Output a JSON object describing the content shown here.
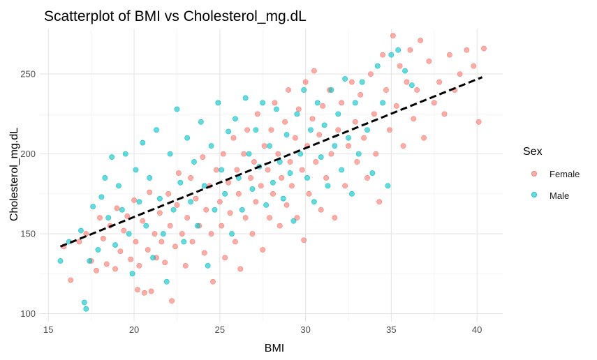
{
  "chart_data": {
    "type": "scatter",
    "title": "Scatterplot of BMI vs Cholesterol_mg.dL",
    "xlabel": "BMI",
    "ylabel": "Cholesterol_mg.dL",
    "xlim": [
      14.5,
      41.5
    ],
    "ylim": [
      95,
      278
    ],
    "x_ticks": [
      15,
      20,
      25,
      30,
      35,
      40
    ],
    "y_ticks": [
      100,
      150,
      200,
      250
    ],
    "grid": true,
    "legend": {
      "title": "Sex",
      "placement": "right",
      "entries": [
        "Female",
        "Male"
      ]
    },
    "series": [
      {
        "name": "Female",
        "color": "#F8766D",
        "points": [
          [
            15.9,
            142
          ],
          [
            16.3,
            121
          ],
          [
            16.8,
            145
          ],
          [
            17.2,
            150
          ],
          [
            17.5,
            133
          ],
          [
            17.8,
            127
          ],
          [
            18.0,
            160
          ],
          [
            18.2,
            147
          ],
          [
            18.4,
            131
          ],
          [
            18.6,
            155
          ],
          [
            18.9,
            128
          ],
          [
            19.0,
            166
          ],
          [
            19.2,
            139
          ],
          [
            19.4,
            152
          ],
          [
            19.6,
            161
          ],
          [
            19.8,
            134
          ],
          [
            20.0,
            171
          ],
          [
            20.1,
            145
          ],
          [
            20.2,
            115
          ],
          [
            20.3,
            130
          ],
          [
            20.5,
            158
          ],
          [
            20.6,
            113
          ],
          [
            20.8,
            140
          ],
          [
            20.9,
            176
          ],
          [
            21.0,
            114
          ],
          [
            21.2,
            150
          ],
          [
            21.3,
            135
          ],
          [
            21.5,
            163
          ],
          [
            21.6,
            145
          ],
          [
            21.8,
            132
          ],
          [
            22.0,
            175
          ],
          [
            22.1,
            155
          ],
          [
            22.2,
            108
          ],
          [
            22.4,
            142
          ],
          [
            22.5,
            168
          ],
          [
            22.6,
            188
          ],
          [
            22.8,
            150
          ],
          [
            23.0,
            130
          ],
          [
            23.1,
            160
          ],
          [
            23.3,
            185
          ],
          [
            23.4,
            145
          ],
          [
            23.6,
            172
          ],
          [
            23.8,
            155
          ],
          [
            24.0,
            198
          ],
          [
            24.1,
            138
          ],
          [
            24.2,
            165
          ],
          [
            24.4,
            180
          ],
          [
            24.5,
            150
          ],
          [
            24.6,
            120
          ],
          [
            24.8,
            190
          ],
          [
            25.0,
            170
          ],
          [
            25.1,
            155
          ],
          [
            25.2,
            200
          ],
          [
            25.3,
            135
          ],
          [
            25.5,
            182
          ],
          [
            25.6,
            163
          ],
          [
            25.8,
            210
          ],
          [
            25.9,
            145
          ],
          [
            26.0,
            190
          ],
          [
            26.1,
            175
          ],
          [
            26.2,
            128
          ],
          [
            26.4,
            200
          ],
          [
            26.5,
            160
          ],
          [
            26.6,
            215
          ],
          [
            26.8,
            185
          ],
          [
            26.9,
            150
          ],
          [
            27.0,
            195
          ],
          [
            27.1,
            170
          ],
          [
            27.2,
            225
          ],
          [
            27.4,
            180
          ],
          [
            27.5,
            140
          ],
          [
            27.6,
            205
          ],
          [
            27.8,
            190
          ],
          [
            27.9,
            160
          ],
          [
            28.0,
            215
          ],
          [
            28.1,
            175
          ],
          [
            28.2,
            232
          ],
          [
            28.4,
            200
          ],
          [
            28.5,
            155
          ],
          [
            28.6,
            185
          ],
          [
            28.8,
            220
          ],
          [
            28.9,
            168
          ],
          [
            29.0,
            240
          ],
          [
            29.1,
            195
          ],
          [
            29.2,
            180
          ],
          [
            29.4,
            210
          ],
          [
            29.5,
            160
          ],
          [
            29.6,
            228
          ],
          [
            29.8,
            190
          ],
          [
            29.9,
            146
          ],
          [
            30.0,
            245
          ],
          [
            30.1,
            205
          ],
          [
            30.2,
            175
          ],
          [
            30.4,
            222
          ],
          [
            30.5,
            252
          ],
          [
            30.6,
            195
          ],
          [
            30.8,
            212
          ],
          [
            30.9,
            165
          ],
          [
            31.0,
            230
          ],
          [
            31.2,
            185
          ],
          [
            31.4,
            240
          ],
          [
            31.5,
            200
          ],
          [
            31.7,
            160
          ],
          [
            31.9,
            215
          ],
          [
            32.1,
            232
          ],
          [
            32.3,
            180
          ],
          [
            32.5,
            205
          ],
          [
            32.7,
            245
          ],
          [
            32.9,
            220
          ],
          [
            33.0,
            195
          ],
          [
            33.2,
            237
          ],
          [
            33.4,
            210
          ],
          [
            33.6,
            185
          ],
          [
            33.8,
            250
          ],
          [
            34.0,
            225
          ],
          [
            34.1,
            200
          ],
          [
            34.3,
            170
          ],
          [
            34.5,
            262
          ],
          [
            34.7,
            240
          ],
          [
            34.9,
            215
          ],
          [
            35.1,
            274
          ],
          [
            35.3,
            230
          ],
          [
            35.5,
            255
          ],
          [
            35.7,
            205
          ],
          [
            35.9,
            245
          ],
          [
            36.1,
            265
          ],
          [
            36.3,
            222
          ],
          [
            36.5,
            240
          ],
          [
            36.7,
            271
          ],
          [
            36.9,
            210
          ],
          [
            37.2,
            258
          ],
          [
            37.5,
            232
          ],
          [
            37.8,
            245
          ],
          [
            38.1,
            225
          ],
          [
            38.4,
            262
          ],
          [
            38.7,
            240
          ],
          [
            39.0,
            250
          ],
          [
            39.4,
            265
          ],
          [
            39.8,
            255
          ],
          [
            40.1,
            220
          ],
          [
            40.4,
            266
          ]
        ]
      },
      {
        "name": "Male",
        "color": "#00BFC4",
        "points": [
          [
            15.7,
            133
          ],
          [
            16.2,
            145
          ],
          [
            16.9,
            152
          ],
          [
            17.1,
            107
          ],
          [
            17.2,
            103
          ],
          [
            17.4,
            133
          ],
          [
            17.6,
            167
          ],
          [
            17.9,
            140
          ],
          [
            18.1,
            173
          ],
          [
            18.3,
            185
          ],
          [
            18.5,
            160
          ],
          [
            18.7,
            198
          ],
          [
            18.9,
            143
          ],
          [
            19.1,
            180
          ],
          [
            19.3,
            165
          ],
          [
            19.5,
            200
          ],
          [
            19.7,
            150
          ],
          [
            19.9,
            125
          ],
          [
            20.1,
            190
          ],
          [
            20.3,
            170
          ],
          [
            20.5,
            207
          ],
          [
            20.7,
            155
          ],
          [
            20.9,
            185
          ],
          [
            21.1,
            135
          ],
          [
            21.3,
            215
          ],
          [
            21.5,
            172
          ],
          [
            21.7,
            150
          ],
          [
            21.9,
            120
          ],
          [
            22.1,
            200
          ],
          [
            22.3,
            165
          ],
          [
            22.5,
            228
          ],
          [
            22.7,
            182
          ],
          [
            22.9,
            145
          ],
          [
            23.1,
            210
          ],
          [
            23.3,
            170
          ],
          [
            23.5,
            195
          ],
          [
            23.7,
            155
          ],
          [
            23.9,
            220
          ],
          [
            24.1,
            180
          ],
          [
            24.3,
            130
          ],
          [
            24.5,
            205
          ],
          [
            24.7,
            165
          ],
          [
            24.9,
            232
          ],
          [
            25.1,
            190
          ],
          [
            25.3,
            175
          ],
          [
            25.5,
            214
          ],
          [
            25.7,
            150
          ],
          [
            25.9,
            222
          ],
          [
            26.1,
            185
          ],
          [
            26.3,
            165
          ],
          [
            26.5,
            235
          ],
          [
            26.7,
            200
          ],
          [
            26.9,
            178
          ],
          [
            27.1,
            215
          ],
          [
            27.3,
            192
          ],
          [
            27.5,
            232
          ],
          [
            27.7,
            168
          ],
          [
            27.9,
            205
          ],
          [
            28.1,
            182
          ],
          [
            28.3,
            228
          ],
          [
            28.5,
            195
          ],
          [
            28.7,
            172
          ],
          [
            28.9,
            212
          ],
          [
            29.1,
            188
          ],
          [
            29.3,
            158
          ],
          [
            29.5,
            225
          ],
          [
            29.7,
            200
          ],
          [
            29.9,
            240
          ],
          [
            30.1,
            185
          ],
          [
            30.3,
            215
          ],
          [
            30.5,
            170
          ],
          [
            30.7,
            232
          ],
          [
            30.9,
            198
          ],
          [
            31.1,
            218
          ],
          [
            31.3,
            180
          ],
          [
            31.5,
            240
          ],
          [
            31.7,
            205
          ],
          [
            31.9,
            225
          ],
          [
            32.1,
            190
          ],
          [
            32.3,
            247
          ],
          [
            32.5,
            210
          ],
          [
            32.7,
            175
          ],
          [
            32.9,
            232
          ],
          [
            33.1,
            200
          ],
          [
            33.3,
            245
          ],
          [
            33.6,
            215
          ],
          [
            33.9,
            188
          ],
          [
            34.2,
            255
          ],
          [
            34.5,
            232
          ],
          [
            34.8,
            180
          ],
          [
            35.0,
            262
          ],
          [
            35.4,
            265
          ],
          [
            35.8,
            252
          ],
          [
            36.2,
            243
          ]
        ]
      }
    ],
    "trend_line": {
      "style": "dashed",
      "color": "#000000",
      "x": [
        15.7,
        40.3
      ],
      "y": [
        142,
        248
      ]
    }
  }
}
